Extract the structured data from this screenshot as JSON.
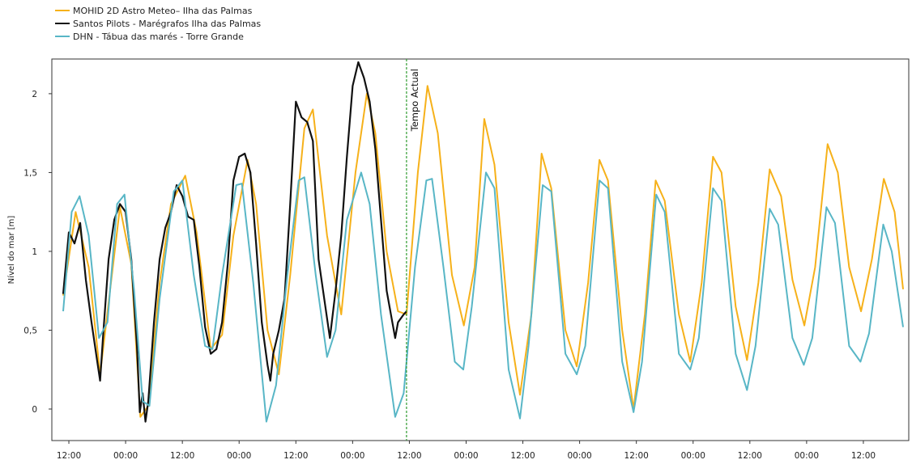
{
  "chart_data": {
    "type": "line",
    "title": "",
    "xlabel": "",
    "ylabel": "Nível do mar [m]",
    "ylim": [
      -0.2,
      2.22
    ],
    "yticks": [
      0,
      0.5,
      1,
      1.5,
      2
    ],
    "ytick_labels": [
      "0",
      "0,5",
      "1",
      "1,5",
      "2"
    ],
    "xlim": [
      -3,
      148
    ],
    "xticks": [
      0,
      10,
      20,
      30,
      40,
      50,
      60,
      70,
      80,
      90,
      100,
      110,
      120,
      130,
      140
    ],
    "xtick_labels": [
      "12:00",
      "00:00",
      "12:00",
      "00:00",
      "12:00",
      "00:00",
      "12:00",
      "00:00",
      "12:00",
      "00:00",
      "12:00",
      "00:00",
      "12:00",
      "00:00",
      "12:00"
    ],
    "grid": false,
    "legend_position": "top-left",
    "annotation": {
      "label": "Tempo Actual",
      "x": 59.5,
      "color": "#2e9a2e"
    },
    "series": [
      {
        "name": "MOHID 2D Astro Meteo– Ilha das Palmas",
        "color": "#f6b11a",
        "points": [
          [
            -1,
            0.72
          ],
          [
            1.2,
            1.25
          ],
          [
            3.5,
            0.9
          ],
          [
            5.5,
            0.22
          ],
          [
            9,
            1.28
          ],
          [
            11,
            0.92
          ],
          [
            12.6,
            -0.05
          ],
          [
            14,
            0.02
          ],
          [
            16,
            0.8
          ],
          [
            18,
            1.3
          ],
          [
            20.5,
            1.48
          ],
          [
            22.5,
            1.12
          ],
          [
            25,
            0.38
          ],
          [
            27,
            0.47
          ],
          [
            29,
            1.1
          ],
          [
            31.5,
            1.58
          ],
          [
            33,
            1.3
          ],
          [
            35,
            0.5
          ],
          [
            37,
            0.22
          ],
          [
            39,
            0.85
          ],
          [
            41.5,
            1.78
          ],
          [
            43,
            1.9
          ],
          [
            45.5,
            1.1
          ],
          [
            48,
            0.6
          ],
          [
            50.5,
            1.5
          ],
          [
            52.5,
            2.0
          ],
          [
            54,
            1.75
          ],
          [
            56,
            1.0
          ],
          [
            58,
            0.62
          ],
          [
            59.5,
            0.6
          ],
          [
            61.5,
            1.5
          ],
          [
            63.2,
            2.05
          ],
          [
            65,
            1.75
          ],
          [
            67.5,
            0.85
          ],
          [
            69.6,
            0.53
          ],
          [
            71.5,
            0.9
          ],
          [
            73.2,
            1.84
          ],
          [
            75,
            1.55
          ],
          [
            77.5,
            0.55
          ],
          [
            79.5,
            0.09
          ],
          [
            81.5,
            0.6
          ],
          [
            83.3,
            1.62
          ],
          [
            85,
            1.4
          ],
          [
            87.5,
            0.5
          ],
          [
            89.5,
            0.27
          ],
          [
            91.5,
            0.8
          ],
          [
            93.5,
            1.58
          ],
          [
            95,
            1.45
          ],
          [
            97.5,
            0.5
          ],
          [
            99.5,
            0.0
          ],
          [
            101.5,
            0.6
          ],
          [
            103.4,
            1.45
          ],
          [
            105,
            1.32
          ],
          [
            107.5,
            0.6
          ],
          [
            109.5,
            0.3
          ],
          [
            111.5,
            0.8
          ],
          [
            113.5,
            1.6
          ],
          [
            115,
            1.5
          ],
          [
            117.5,
            0.65
          ],
          [
            119.5,
            0.31
          ],
          [
            121.5,
            0.8
          ],
          [
            123.5,
            1.52
          ],
          [
            125.5,
            1.35
          ],
          [
            127.5,
            0.82
          ],
          [
            129.6,
            0.53
          ],
          [
            131.5,
            0.9
          ],
          [
            133.7,
            1.68
          ],
          [
            135.5,
            1.5
          ],
          [
            137.5,
            0.9
          ],
          [
            139.6,
            0.62
          ],
          [
            141.5,
            0.95
          ],
          [
            143.6,
            1.46
          ],
          [
            145.5,
            1.25
          ],
          [
            147,
            0.76
          ]
        ]
      },
      {
        "name": "Santos Pilots - Marégrafos Ilha das Palmas",
        "color": "#111111",
        "points": [
          [
            -1,
            0.73
          ],
          [
            0,
            1.12
          ],
          [
            1,
            1.05
          ],
          [
            2,
            1.18
          ],
          [
            3,
            0.82
          ],
          [
            4,
            0.55
          ],
          [
            5,
            0.3
          ],
          [
            5.5,
            0.18
          ],
          [
            6,
            0.45
          ],
          [
            7,
            0.95
          ],
          [
            8,
            1.2
          ],
          [
            9,
            1.3
          ],
          [
            10,
            1.25
          ],
          [
            11,
            0.95
          ],
          [
            12,
            0.4
          ],
          [
            12.5,
            -0.02
          ],
          [
            13,
            0.1
          ],
          [
            13.5,
            -0.08
          ],
          [
            14,
            0.05
          ],
          [
            15,
            0.55
          ],
          [
            16,
            0.95
          ],
          [
            17,
            1.15
          ],
          [
            18,
            1.25
          ],
          [
            19,
            1.42
          ],
          [
            20,
            1.35
          ],
          [
            21,
            1.22
          ],
          [
            22,
            1.2
          ],
          [
            23,
            0.9
          ],
          [
            24,
            0.52
          ],
          [
            25,
            0.35
          ],
          [
            26,
            0.38
          ],
          [
            27,
            0.55
          ],
          [
            28,
            0.92
          ],
          [
            29,
            1.45
          ],
          [
            30,
            1.6
          ],
          [
            31,
            1.62
          ],
          [
            32,
            1.5
          ],
          [
            33,
            1.05
          ],
          [
            34,
            0.55
          ],
          [
            35,
            0.28
          ],
          [
            35.5,
            0.18
          ],
          [
            36,
            0.35
          ],
          [
            37,
            0.5
          ],
          [
            38,
            0.7
          ],
          [
            39,
            1.3
          ],
          [
            40,
            1.95
          ],
          [
            41,
            1.85
          ],
          [
            42,
            1.82
          ],
          [
            43,
            1.7
          ],
          [
            44,
            0.95
          ],
          [
            45,
            0.7
          ],
          [
            46,
            0.45
          ],
          [
            47,
            0.75
          ],
          [
            48,
            1.1
          ],
          [
            49,
            1.6
          ],
          [
            50,
            2.05
          ],
          [
            51,
            2.2
          ],
          [
            52,
            2.1
          ],
          [
            53,
            1.95
          ],
          [
            54,
            1.65
          ],
          [
            55,
            1.2
          ],
          [
            56,
            0.75
          ],
          [
            57,
            0.55
          ],
          [
            57.5,
            0.45
          ],
          [
            58,
            0.55
          ],
          [
            59,
            0.6
          ],
          [
            59.5,
            0.62
          ]
        ]
      },
      {
        "name": "DHN - Tábua das marés - Torre Grande",
        "color": "#58b6c6",
        "points": [
          [
            -1,
            0.62
          ],
          [
            0.5,
            1.25
          ],
          [
            1.9,
            1.35
          ],
          [
            3.5,
            1.1
          ],
          [
            5.3,
            0.45
          ],
          [
            6.8,
            0.55
          ],
          [
            8.5,
            1.3
          ],
          [
            9.8,
            1.36
          ],
          [
            11.5,
            0.75
          ],
          [
            13,
            0.05
          ],
          [
            14.2,
            0.02
          ],
          [
            16,
            0.7
          ],
          [
            18.5,
            1.38
          ],
          [
            20,
            1.45
          ],
          [
            22,
            0.85
          ],
          [
            24,
            0.4
          ],
          [
            25.3,
            0.38
          ],
          [
            27,
            0.85
          ],
          [
            29.5,
            1.42
          ],
          [
            30.5,
            1.43
          ],
          [
            32.5,
            0.8
          ],
          [
            34.8,
            -0.08
          ],
          [
            36.5,
            0.15
          ],
          [
            38.5,
            0.85
          ],
          [
            40.5,
            1.45
          ],
          [
            41.5,
            1.47
          ],
          [
            43.5,
            0.85
          ],
          [
            45.5,
            0.33
          ],
          [
            47,
            0.5
          ],
          [
            49,
            1.2
          ],
          [
            51.5,
            1.5
          ],
          [
            53,
            1.3
          ],
          [
            55,
            0.6
          ],
          [
            57.5,
            -0.05
          ],
          [
            59,
            0.1
          ],
          [
            61,
            0.9
          ],
          [
            63,
            1.45
          ],
          [
            64,
            1.46
          ],
          [
            66,
            0.9
          ],
          [
            68,
            0.3
          ],
          [
            69.5,
            0.25
          ],
          [
            71,
            0.65
          ],
          [
            73.5,
            1.5
          ],
          [
            75,
            1.4
          ],
          [
            77.5,
            0.25
          ],
          [
            79.5,
            -0.06
          ],
          [
            81,
            0.4
          ],
          [
            83.5,
            1.42
          ],
          [
            85,
            1.38
          ],
          [
            87.5,
            0.35
          ],
          [
            89.5,
            0.22
          ],
          [
            91,
            0.4
          ],
          [
            93.5,
            1.45
          ],
          [
            95,
            1.4
          ],
          [
            97.5,
            0.3
          ],
          [
            99.5,
            -0.02
          ],
          [
            101,
            0.3
          ],
          [
            103.5,
            1.36
          ],
          [
            105,
            1.25
          ],
          [
            107.5,
            0.35
          ],
          [
            109.5,
            0.25
          ],
          [
            111,
            0.45
          ],
          [
            113.5,
            1.4
          ],
          [
            115,
            1.32
          ],
          [
            117.5,
            0.35
          ],
          [
            119.5,
            0.12
          ],
          [
            121,
            0.4
          ],
          [
            123.5,
            1.27
          ],
          [
            125,
            1.17
          ],
          [
            127.5,
            0.45
          ],
          [
            129.5,
            0.28
          ],
          [
            131,
            0.45
          ],
          [
            133.5,
            1.28
          ],
          [
            135,
            1.18
          ],
          [
            137.5,
            0.4
          ],
          [
            139.5,
            0.3
          ],
          [
            141,
            0.48
          ],
          [
            143.5,
            1.17
          ],
          [
            145,
            1.0
          ],
          [
            147,
            0.52
          ]
        ]
      }
    ]
  }
}
